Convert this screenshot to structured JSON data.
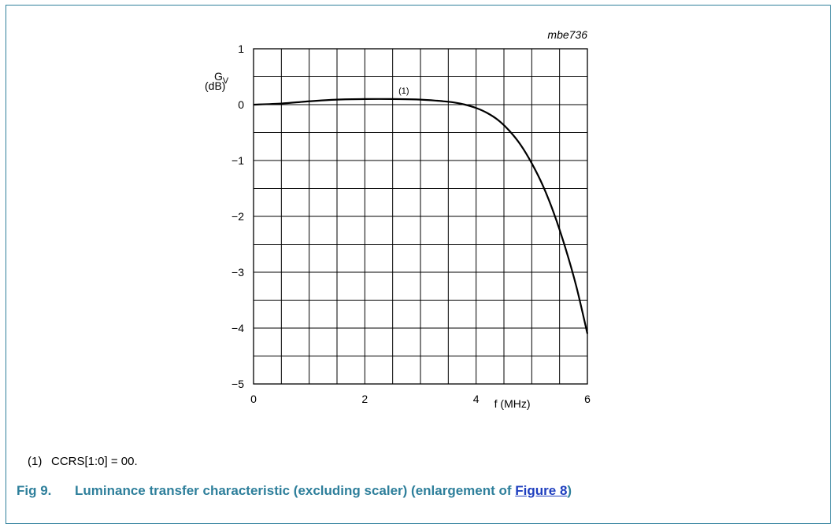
{
  "figure_id": "mbe736",
  "footnote": {
    "marker": "(1)",
    "text": "CCRS[1:0] = 00."
  },
  "caption": {
    "number": "Fig 9.",
    "text_before": "Luminance transfer characteristic (excluding scaler) (enlargement of ",
    "link_text": "Figure 8",
    "text_after": ")"
  },
  "colors": {
    "caption": "#2e7f9b",
    "link": "#1f3fbf",
    "frame": "#2e7f9b",
    "grid": "#000000"
  },
  "chart_data": {
    "type": "line",
    "ylabel_symbol": "G",
    "ylabel_subscript": "V",
    "ylabel_unit": "(dB)",
    "xlabel": "f (MHz)",
    "xlim": [
      0,
      6
    ],
    "ylim": [
      -5,
      1
    ],
    "x_ticks": [
      0,
      2,
      4,
      6
    ],
    "x_tick_labels": [
      "0",
      "2",
      "4",
      "6"
    ],
    "y_ticks": [
      1,
      0,
      -1,
      -2,
      -3,
      -4,
      -5
    ],
    "y_tick_labels": [
      "1",
      "0",
      "−1",
      "−2",
      "−3",
      "−4",
      "−5"
    ],
    "grid": true,
    "grid_step_x": 0.5,
    "grid_step_y": 0.5,
    "series": [
      {
        "name": "(1)",
        "x": [
          0,
          0.5,
          1.0,
          1.5,
          2.0,
          2.5,
          3.0,
          3.3,
          3.6,
          3.8,
          4.0,
          4.2,
          4.4,
          4.6,
          4.8,
          5.0,
          5.2,
          5.4,
          5.6,
          5.8,
          6.0
        ],
        "y": [
          0,
          0.02,
          0.06,
          0.09,
          0.1,
          0.1,
          0.09,
          0.07,
          0.04,
          0.0,
          -0.06,
          -0.15,
          -0.28,
          -0.47,
          -0.72,
          -1.05,
          -1.45,
          -1.95,
          -2.55,
          -3.25,
          -4.1
        ]
      }
    ]
  }
}
